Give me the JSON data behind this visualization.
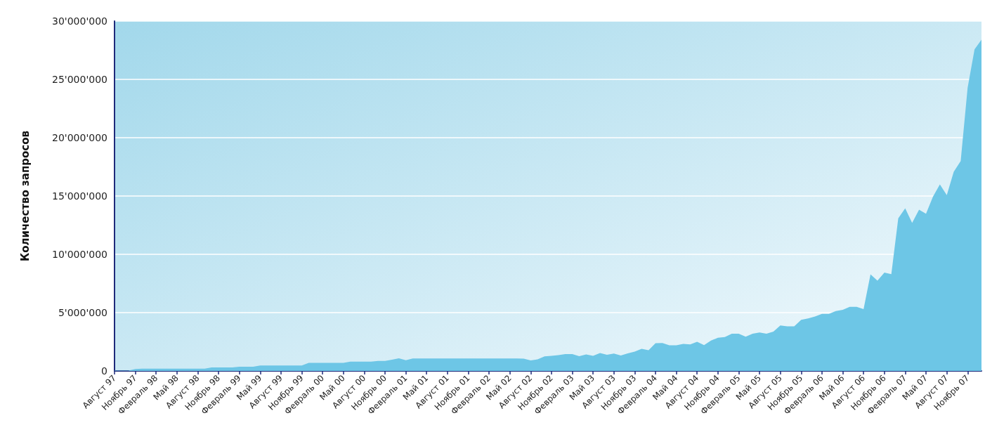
{
  "chart_data": {
    "type": "area",
    "ylabel": "Количество запросов",
    "categories": [
      "Август 97",
      null,
      null,
      "Ноябрь 97",
      null,
      null,
      "Февраль 98",
      null,
      null,
      "Май 98",
      null,
      null,
      "Август 98",
      null,
      null,
      "Ноябрь 98",
      null,
      null,
      "Февраль 99",
      null,
      null,
      "Май 99",
      null,
      null,
      "Август 99",
      null,
      null,
      "Ноябрь 99",
      null,
      null,
      "Февраль 00",
      null,
      null,
      "Май 00",
      null,
      null,
      "Август 00",
      null,
      null,
      "Ноябрь 00",
      null,
      null,
      "Февраль 01",
      null,
      null,
      "Май 01",
      null,
      null,
      "Август 01",
      null,
      null,
      "Ноябрь 01",
      null,
      null,
      "Февраль 02",
      null,
      null,
      "Май 02",
      null,
      null,
      "Август 02",
      null,
      null,
      "Ноябрь 02",
      null,
      null,
      "Февраль 03",
      null,
      null,
      "Май 03",
      null,
      null,
      "Август 03",
      null,
      null,
      "Ноябрь 03",
      null,
      null,
      "Февраль 04",
      null,
      null,
      "Май 04",
      null,
      null,
      "Август 04",
      null,
      null,
      "Ноябрь 04",
      null,
      null,
      "Февраль 05",
      null,
      null,
      "Май 05",
      null,
      null,
      "Август 05",
      null,
      null,
      "Ноябрь 05",
      null,
      null,
      "Февраль 06",
      null,
      null,
      "Май 06",
      null,
      null,
      "Август 06",
      null,
      null,
      "Ноябрь 06",
      null,
      null,
      "Февраль 07",
      null,
      null,
      "Май 07",
      null,
      null,
      "Август 07",
      null,
      null,
      "Ноябрь 07",
      null,
      null
    ],
    "series": [
      {
        "color": "#6dc6e6",
        "values": [
          30000,
          30000,
          30000,
          170000,
          200000,
          200000,
          200000,
          200000,
          200000,
          200000,
          200000,
          200000,
          200000,
          200000,
          300000,
          300000,
          300000,
          300000,
          360000,
          360000,
          360000,
          470000,
          470000,
          470000,
          470000,
          470000,
          470000,
          470000,
          690000,
          690000,
          690000,
          690000,
          690000,
          690000,
          800000,
          800000,
          800000,
          800000,
          860000,
          860000,
          970000,
          1080000,
          920000,
          1070000,
          1070000,
          1070000,
          1070000,
          1070000,
          1070000,
          1070000,
          1070000,
          1070000,
          1070000,
          1070000,
          1070000,
          1070000,
          1070000,
          1070000,
          1070000,
          1050000,
          910000,
          990000,
          1250000,
          1300000,
          1350000,
          1450000,
          1450000,
          1270000,
          1410000,
          1290000,
          1540000,
          1390000,
          1490000,
          1330000,
          1500000,
          1660000,
          1900000,
          1780000,
          2380000,
          2400000,
          2200000,
          2200000,
          2320000,
          2280000,
          2500000,
          2220000,
          2600000,
          2850000,
          2900000,
          3200000,
          3200000,
          2930000,
          3200000,
          3300000,
          3200000,
          3370000,
          3900000,
          3820000,
          3820000,
          4380000,
          4500000,
          4670000,
          4900000,
          4900000,
          5140000,
          5240000,
          5500000,
          5500000,
          5300000,
          8280000,
          7740000,
          8440000,
          8300000,
          13080000,
          13940000,
          12700000,
          13820000,
          13480000,
          14940000,
          16000000,
          15080000,
          17080000,
          18000000,
          24280000,
          27580000,
          28400000
        ]
      }
    ],
    "ylim": [
      0,
      30000000
    ],
    "yticks": [
      0,
      {
        "value": 5000000,
        "label": "5'000'000"
      },
      {
        "value": 10000000,
        "label": "10'000'000"
      },
      {
        "value": 15000000,
        "label": "15'000'000"
      },
      {
        "value": 20000000,
        "label": "20'000'000"
      },
      {
        "value": 25000000,
        "label": "25'000'000"
      },
      {
        "value": 30000000,
        "label": "30'000'000"
      }
    ],
    "grid": "y"
  }
}
